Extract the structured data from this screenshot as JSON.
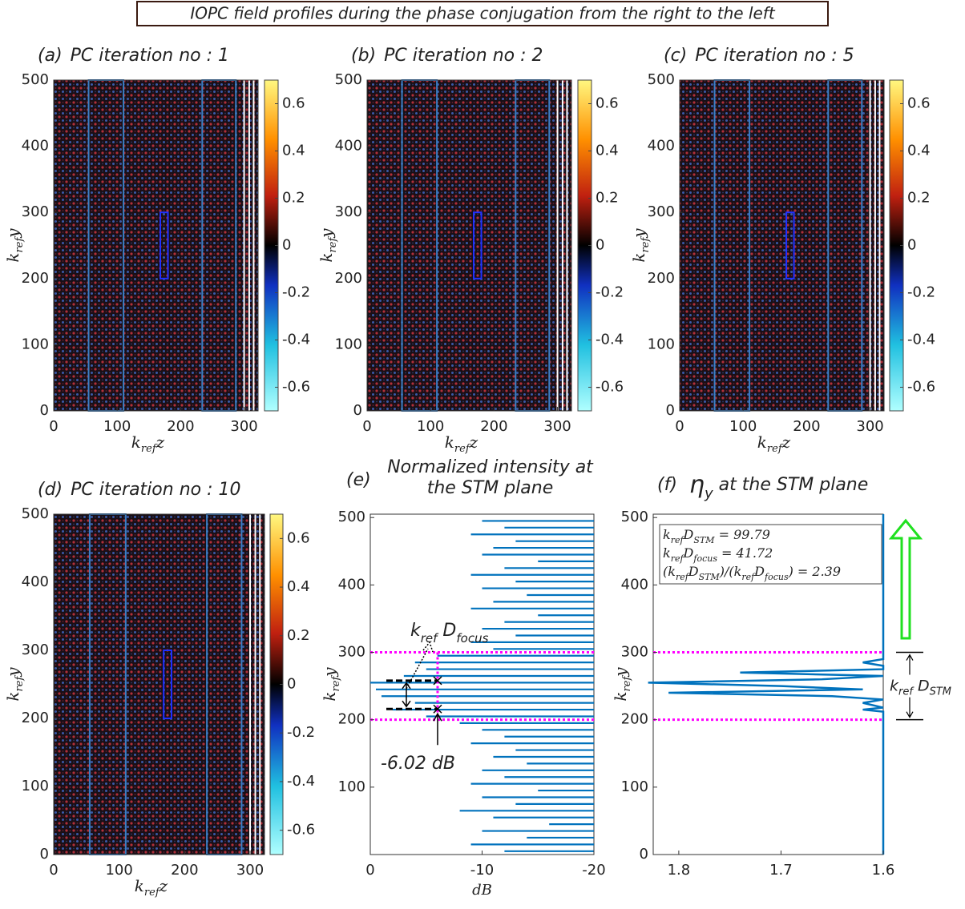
{
  "title": "IOPC field profiles during the phase conjugation from the right to the left",
  "chart_data": [
    {
      "type": "heatmap",
      "label": "(a)",
      "title": "PC iteration no : 1",
      "xlabel": [
        {
          "text": "k"
        },
        {
          "sub": "ref"
        },
        {
          "text": "z"
        }
      ],
      "ylabel": [
        {
          "text": "k"
        },
        {
          "sub": "ref"
        },
        {
          "text": "y"
        }
      ],
      "xlim": [
        0,
        322
      ],
      "xticks": [
        0,
        100,
        200,
        300
      ],
      "ylim": [
        0,
        500
      ],
      "yticks": [
        0,
        100,
        200,
        300,
        400,
        500
      ],
      "clim": [
        -0.7,
        0.7
      ],
      "cticks": [
        -0.6,
        -0.4,
        -0.2,
        0,
        0.2,
        0.4,
        0.6
      ],
      "boundaries": [
        55,
        110,
        234,
        287
      ],
      "white_lines": [
        300,
        308,
        315
      ],
      "box": {
        "z": [
          168,
          180
        ],
        "y": [
          200,
          300
        ]
      }
    },
    {
      "type": "heatmap",
      "label": "(b)",
      "title": "PC iteration no : 2",
      "xlabel": [
        {
          "text": "k"
        },
        {
          "sub": "ref"
        },
        {
          "text": "z"
        }
      ],
      "ylabel": [
        {
          "text": "k"
        },
        {
          "sub": "ref"
        },
        {
          "text": "y"
        }
      ],
      "xlim": [
        0,
        322
      ],
      "xticks": [
        0,
        100,
        200,
        300
      ],
      "ylim": [
        0,
        500
      ],
      "yticks": [
        0,
        100,
        200,
        300,
        400,
        500
      ],
      "clim": [
        -0.7,
        0.7
      ],
      "cticks": [
        -0.6,
        -0.4,
        -0.2,
        0,
        0.2,
        0.4,
        0.6
      ],
      "boundaries": [
        55,
        110,
        234,
        287
      ],
      "white_lines": [
        300,
        308,
        315
      ],
      "box": {
        "z": [
          168,
          180
        ],
        "y": [
          200,
          300
        ]
      }
    },
    {
      "type": "heatmap",
      "label": "(c)",
      "title": "PC iteration no : 5",
      "xlabel": [
        {
          "text": "k"
        },
        {
          "sub": "ref"
        },
        {
          "text": "z"
        }
      ],
      "ylabel": [
        {
          "text": "k"
        },
        {
          "sub": "ref"
        },
        {
          "text": "y"
        }
      ],
      "xlim": [
        0,
        322
      ],
      "xticks": [
        0,
        100,
        200,
        300
      ],
      "ylim": [
        0,
        500
      ],
      "yticks": [
        0,
        100,
        200,
        300,
        400,
        500
      ],
      "clim": [
        -0.7,
        0.7
      ],
      "cticks": [
        -0.6,
        -0.4,
        -0.2,
        0,
        0.2,
        0.4,
        0.6
      ],
      "boundaries": [
        55,
        110,
        234,
        287
      ],
      "white_lines": [
        300,
        308,
        315
      ],
      "box": {
        "z": [
          168,
          180
        ],
        "y": [
          200,
          300
        ]
      }
    },
    {
      "type": "heatmap",
      "label": "(d)",
      "title": "PC iteration no : 10",
      "xlabel": [
        {
          "text": "k"
        },
        {
          "sub": "ref"
        },
        {
          "text": "z"
        }
      ],
      "ylabel": [
        {
          "text": "k"
        },
        {
          "sub": "ref"
        },
        {
          "text": "y"
        }
      ],
      "xlim": [
        0,
        322
      ],
      "xticks": [
        0,
        100,
        200,
        300
      ],
      "ylim": [
        0,
        500
      ],
      "yticks": [
        0,
        100,
        200,
        300,
        400,
        500
      ],
      "clim": [
        -0.7,
        0.7
      ],
      "cticks": [
        -0.6,
        -0.4,
        -0.2,
        0,
        0.2,
        0.4,
        0.6
      ],
      "boundaries": [
        55,
        110,
        234,
        287
      ],
      "white_lines": [
        300,
        308,
        315
      ],
      "box": {
        "z": [
          168,
          180
        ],
        "y": [
          200,
          300
        ]
      }
    },
    {
      "type": "stem",
      "label": "(e)",
      "title": [
        "Normalized intensity at",
        "the STM plane"
      ],
      "xlabel": "dB",
      "ylabel": [
        {
          "text": "k"
        },
        {
          "sub": "ref"
        },
        {
          "text": "y"
        }
      ],
      "xlim": [
        0,
        -20
      ],
      "xticks": [
        0,
        -10,
        -20
      ],
      "ylim": [
        0,
        505
      ],
      "yticks": [
        100,
        200,
        300,
        400,
        500
      ],
      "y": [
        5,
        15,
        25,
        35,
        45,
        55,
        65,
        75,
        85,
        95,
        105,
        115,
        125,
        135,
        145,
        155,
        165,
        175,
        185,
        195,
        205,
        215,
        225,
        235,
        245,
        255,
        265,
        275,
        285,
        295,
        305,
        315,
        325,
        335,
        345,
        355,
        365,
        375,
        385,
        395,
        405,
        415,
        425,
        435,
        445,
        455,
        465,
        475,
        485,
        495
      ],
      "values": [
        -12,
        -9,
        -14,
        -10,
        -16,
        -11,
        -8,
        -13,
        -10,
        -15,
        -9,
        -12,
        -10,
        -14,
        -11,
        -13,
        -9,
        -12,
        -10,
        -8,
        -5,
        -2,
        -4,
        -1,
        -0.5,
        0,
        -3,
        -5,
        -4,
        -6,
        -11,
        -9,
        -13,
        -10,
        -12,
        -15,
        -9,
        -11,
        -14,
        -10,
        -13,
        -9,
        -12,
        -15,
        -10,
        -11,
        -13,
        -9,
        -12,
        -10
      ],
      "color": "#0072bd",
      "region": [
        200,
        300
      ],
      "threshold": -6.02,
      "threshold_label": "-6.02 dB",
      "focus_edges": [
        258,
        216
      ],
      "focus_label": [
        {
          "text": "k"
        },
        {
          "sub": "ref"
        },
        {
          "text": " D"
        },
        {
          "sub": "focus"
        }
      ]
    },
    {
      "type": "line",
      "label": "(f)",
      "title": [
        {
          "text": "η"
        },
        {
          "sub": "y"
        },
        {
          "text": " at the STM plane"
        }
      ],
      "ylabel": [
        {
          "text": "k"
        },
        {
          "sub": "ref"
        },
        {
          "text": "y"
        }
      ],
      "xlim": [
        1.825,
        1.6
      ],
      "xticks": [
        1.8,
        1.7,
        1.6
      ],
      "ylim": [
        0,
        505
      ],
      "yticks": [
        0,
        100,
        200,
        300,
        400,
        500
      ],
      "y": [
        0,
        205,
        212,
        215,
        218,
        225,
        230,
        235,
        240,
        245,
        250,
        255,
        260,
        265,
        270,
        275,
        280,
        285,
        290,
        300,
        505
      ],
      "values": [
        1.6,
        1.6,
        1.6,
        1.62,
        1.6,
        1.62,
        1.6,
        1.65,
        1.81,
        1.62,
        1.7,
        1.83,
        1.66,
        1.6,
        1.74,
        1.6,
        1.6,
        1.62,
        1.6,
        1.6,
        1.6
      ],
      "color": "#0072bd",
      "region": [
        200,
        300
      ],
      "stm_label": [
        {
          "text": "k"
        },
        {
          "sub": "ref"
        },
        {
          "text": " D"
        },
        {
          "sub": "STM"
        }
      ],
      "textbox": [
        [
          {
            "text": "k"
          },
          {
            "sub": "ref"
          },
          {
            "text": "D"
          },
          {
            "sub": "STM"
          },
          {
            "text": " = 99.79"
          }
        ],
        [
          {
            "text": "k"
          },
          {
            "sub": "ref"
          },
          {
            "text": "D"
          },
          {
            "sub": "focus"
          },
          {
            "text": " = 41.72"
          }
        ],
        [
          {
            "text": "(k"
          },
          {
            "sub": "ref"
          },
          {
            "text": "D"
          },
          {
            "sub": "STM"
          },
          {
            "text": ")/(k"
          },
          {
            "sub": "ref"
          },
          {
            "text": "D"
          },
          {
            "sub": "focus"
          },
          {
            "text": ") = 2.39"
          }
        ]
      ]
    }
  ]
}
